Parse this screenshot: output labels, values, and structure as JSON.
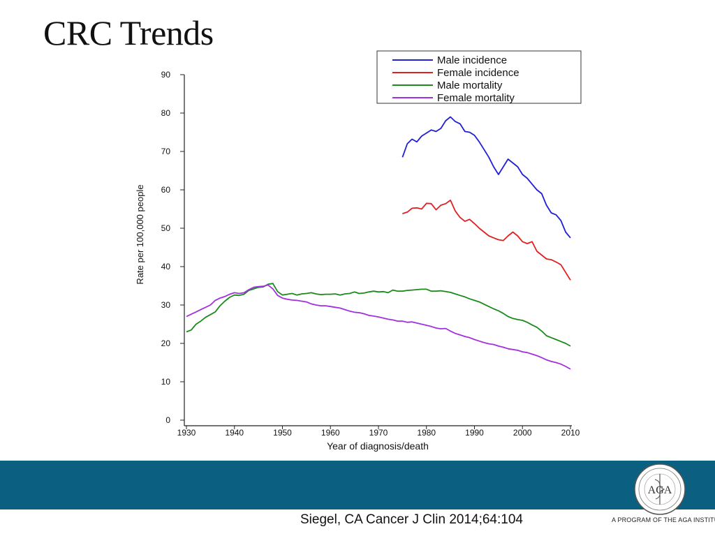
{
  "slide": {
    "title": "CRC Trends",
    "citation": "Siegel, CA Cancer J Clin 2014;64:104",
    "tagline": "A PROGRAM OF THE AGA INSTITUTE",
    "logo_text": "AGA",
    "band_color": "#0b5f80"
  },
  "chart_data": {
    "type": "line",
    "title": "",
    "xlabel": "Year of diagnosis/death",
    "ylabel": "Rate per 100,000 people",
    "xlim": [
      1929,
      2011
    ],
    "ylim": [
      0,
      90
    ],
    "xticks": [
      1930,
      1940,
      1950,
      1960,
      1970,
      1980,
      1990,
      2000,
      2010
    ],
    "yticks": [
      0,
      10,
      20,
      30,
      40,
      50,
      60,
      70,
      80,
      90
    ],
    "grid": false,
    "legend_position": "top-right",
    "series": [
      {
        "name": "Male incidence",
        "color": "#1f1fd6",
        "x": [
          1975,
          1976,
          1977,
          1978,
          1979,
          1980,
          1981,
          1982,
          1983,
          1984,
          1985,
          1986,
          1987,
          1988,
          1989,
          1990,
          1991,
          1992,
          1993,
          1994,
          1995,
          1996,
          1997,
          1998,
          1999,
          2000,
          2001,
          2002,
          2003,
          2004,
          2005,
          2006,
          2007,
          2008,
          2009,
          2010
        ],
        "y": [
          68.5,
          72.0,
          73.2,
          72.5,
          74.0,
          74.8,
          75.6,
          75.2,
          76.0,
          78.0,
          79.0,
          77.8,
          77.2,
          75.2,
          75.0,
          74.2,
          72.5,
          70.5,
          68.5,
          66.0,
          64.0,
          66.0,
          68.0,
          67.0,
          66.0,
          64.0,
          63.0,
          61.5,
          60.0,
          59.0,
          56.0,
          54.0,
          53.5,
          52.0,
          49.0,
          47.5
        ]
      },
      {
        "name": "Female incidence",
        "color": "#e02020",
        "x": [
          1975,
          1976,
          1977,
          1978,
          1979,
          1980,
          1981,
          1982,
          1983,
          1984,
          1985,
          1986,
          1987,
          1988,
          1989,
          1990,
          1991,
          1992,
          1993,
          1994,
          1995,
          1996,
          1997,
          1998,
          1999,
          2000,
          2001,
          2002,
          2003,
          2004,
          2005,
          2006,
          2007,
          2008,
          2009,
          2010
        ],
        "y": [
          53.8,
          54.2,
          55.2,
          55.3,
          55.0,
          56.5,
          56.4,
          54.8,
          56.0,
          56.4,
          57.3,
          54.5,
          52.8,
          51.8,
          52.3,
          51.2,
          50.0,
          49.0,
          48.0,
          47.5,
          47.0,
          46.8,
          48.0,
          49.0,
          48.0,
          46.5,
          46.0,
          46.5,
          44.0,
          43.0,
          42.0,
          41.8,
          41.2,
          40.5,
          38.5,
          36.5
        ]
      },
      {
        "name": "Male mortality",
        "color": "#1a8a1a",
        "x": [
          1930,
          1931,
          1932,
          1933,
          1934,
          1935,
          1936,
          1937,
          1938,
          1939,
          1940,
          1941,
          1942,
          1943,
          1944,
          1945,
          1946,
          1947,
          1948,
          1949,
          1950,
          1951,
          1952,
          1953,
          1954,
          1955,
          1956,
          1957,
          1958,
          1959,
          1960,
          1961,
          1962,
          1963,
          1964,
          1965,
          1966,
          1967,
          1968,
          1969,
          1970,
          1971,
          1972,
          1973,
          1974,
          1975,
          1976,
          1977,
          1978,
          1979,
          1980,
          1981,
          1982,
          1983,
          1984,
          1985,
          1986,
          1987,
          1988,
          1989,
          1990,
          1991,
          1992,
          1993,
          1994,
          1995,
          1996,
          1997,
          1998,
          1999,
          2000,
          2001,
          2002,
          2003,
          2004,
          2005,
          2006,
          2007,
          2008,
          2009,
          2010
        ],
        "y": [
          23.0,
          23.5,
          25.0,
          25.8,
          26.8,
          27.5,
          28.2,
          29.8,
          31.0,
          32.0,
          32.6,
          32.5,
          32.8,
          33.8,
          34.2,
          34.6,
          34.7,
          35.4,
          35.6,
          33.5,
          32.6,
          32.8,
          33.0,
          32.6,
          32.9,
          33.0,
          33.2,
          32.9,
          32.7,
          32.8,
          32.8,
          32.9,
          32.6,
          32.9,
          33.0,
          33.4,
          33.0,
          33.1,
          33.4,
          33.6,
          33.4,
          33.5,
          33.2,
          33.9,
          33.6,
          33.6,
          33.8,
          33.9,
          34.0,
          34.1,
          34.1,
          33.6,
          33.6,
          33.7,
          33.5,
          33.3,
          32.9,
          32.5,
          32.1,
          31.6,
          31.2,
          30.8,
          30.2,
          29.6,
          29.0,
          28.5,
          27.8,
          27.0,
          26.5,
          26.2,
          26.0,
          25.5,
          24.8,
          24.2,
          23.2,
          22.0,
          21.5,
          21.0,
          20.5,
          20.0,
          19.3
        ]
      },
      {
        "name": "Female mortality",
        "color": "#a030e0",
        "x": [
          1930,
          1931,
          1932,
          1933,
          1934,
          1935,
          1936,
          1937,
          1938,
          1939,
          1940,
          1941,
          1942,
          1943,
          1944,
          1945,
          1946,
          1947,
          1948,
          1949,
          1950,
          1951,
          1952,
          1953,
          1954,
          1955,
          1956,
          1957,
          1958,
          1959,
          1960,
          1961,
          1962,
          1963,
          1964,
          1965,
          1966,
          1967,
          1968,
          1969,
          1970,
          1971,
          1972,
          1973,
          1974,
          1975,
          1976,
          1977,
          1978,
          1979,
          1980,
          1981,
          1982,
          1983,
          1984,
          1985,
          1986,
          1987,
          1988,
          1989,
          1990,
          1991,
          1992,
          1993,
          1994,
          1995,
          1996,
          1997,
          1998,
          1999,
          2000,
          2001,
          2002,
          2003,
          2004,
          2005,
          2006,
          2007,
          2008,
          2009,
          2010
        ],
        "y": [
          27.0,
          27.6,
          28.2,
          28.8,
          29.4,
          30.0,
          31.2,
          31.8,
          32.2,
          32.8,
          33.2,
          33.0,
          33.2,
          34.0,
          34.6,
          34.8,
          34.9,
          35.2,
          34.2,
          32.5,
          31.8,
          31.5,
          31.3,
          31.2,
          31.0,
          30.8,
          30.3,
          30.0,
          29.8,
          29.8,
          29.6,
          29.4,
          29.2,
          28.8,
          28.4,
          28.1,
          28.0,
          27.7,
          27.3,
          27.1,
          26.9,
          26.6,
          26.3,
          26.1,
          25.8,
          25.8,
          25.5,
          25.6,
          25.3,
          25.0,
          24.7,
          24.4,
          24.0,
          23.8,
          23.9,
          23.2,
          22.6,
          22.2,
          21.8,
          21.5,
          21.0,
          20.6,
          20.2,
          19.9,
          19.7,
          19.3,
          19.0,
          18.6,
          18.4,
          18.2,
          17.8,
          17.6,
          17.2,
          16.8,
          16.3,
          15.7,
          15.3,
          15.0,
          14.6,
          14.0,
          13.3
        ]
      }
    ]
  }
}
